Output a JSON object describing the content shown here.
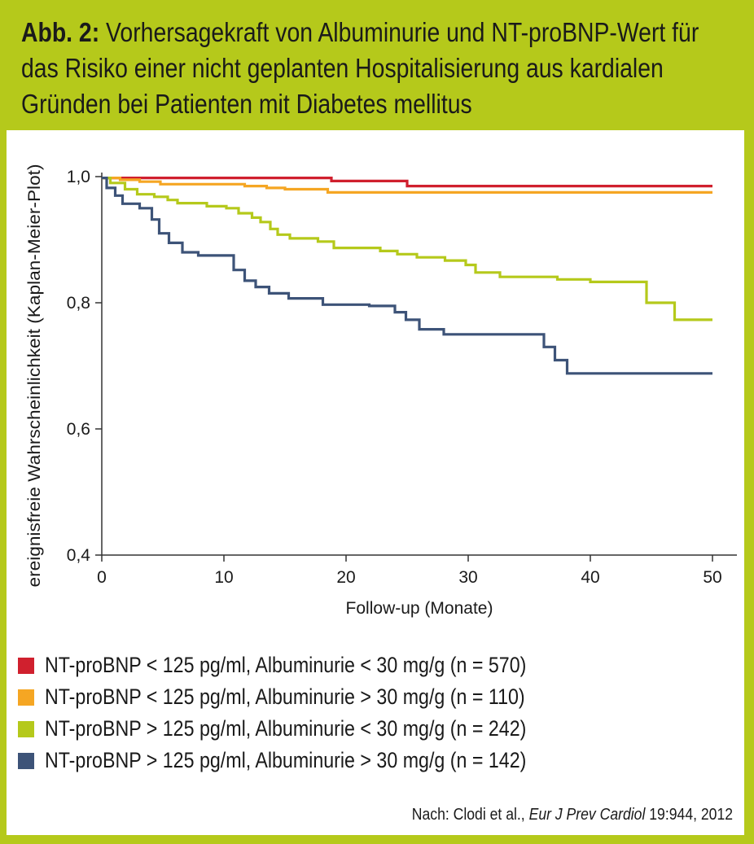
{
  "header": {
    "figure_label": "Abb. 2:",
    "title": "Vorhersagekraft von Albuminurie und NT-proBNP-Wert für das Risiko einer nicht geplanten Hospitalisierung aus kardialen Gründen bei Patienten mit Diabetes mellitus"
  },
  "source": {
    "prefix": "Nach: Clodi et al., ",
    "journal": "Eur J Prev Cardiol",
    "suffix": " 19:944, 2012"
  },
  "colors": {
    "background": "#b5c91b",
    "axis": "#333333"
  },
  "chart_data": {
    "type": "line",
    "subtype": "kaplan-meier step",
    "xlabel": "Follow-up (Monate)",
    "ylabel": "ereignisfreie Wahrscheinlichkeit (Kaplan-Meier-Plot)",
    "xlim": [
      0,
      52
    ],
    "ylim": [
      0.4,
      1.0
    ],
    "x_ticks": [
      0,
      10,
      20,
      30,
      40,
      50
    ],
    "x_tick_labels": [
      "0",
      "10",
      "20",
      "30",
      "40",
      "50"
    ],
    "y_ticks": [
      0.4,
      0.6,
      0.8,
      1.0
    ],
    "y_tick_labels": [
      "0,4",
      "0,6",
      "0,8",
      "1,0"
    ],
    "grid": false,
    "legend_position": "bottom",
    "series": [
      {
        "name": "NT-proBNP < 125 pg/ml, Albuminurie < 30 mg/g (n = 570)",
        "color": "#d0202e",
        "points": [
          [
            0,
            0.998
          ],
          [
            18.8,
            0.993
          ],
          [
            25,
            0.985
          ],
          [
            50,
            0.985
          ]
        ]
      },
      {
        "name": "NT-proBNP < 125 pg/ml, Albuminurie > 30 mg/g (n = 110)",
        "color": "#f5a623",
        "points": [
          [
            0,
            0.998
          ],
          [
            1.5,
            0.995
          ],
          [
            3.1,
            0.992
          ],
          [
            4.8,
            0.988
          ],
          [
            11.7,
            0.985
          ],
          [
            13.5,
            0.982
          ],
          [
            15,
            0.98
          ],
          [
            18.5,
            0.975
          ],
          [
            50,
            0.975
          ]
        ]
      },
      {
        "name": "NT-proBNP > 125 pg/ml, Albuminurie < 30 mg/g (n = 242)",
        "color": "#b5c91b",
        "points": [
          [
            0,
            0.998
          ],
          [
            0.7,
            0.99
          ],
          [
            1.9,
            0.98
          ],
          [
            2.9,
            0.972
          ],
          [
            4.3,
            0.968
          ],
          [
            5.4,
            0.963
          ],
          [
            6.2,
            0.958
          ],
          [
            8.6,
            0.953
          ],
          [
            10.2,
            0.95
          ],
          [
            11.2,
            0.942
          ],
          [
            12.3,
            0.935
          ],
          [
            13,
            0.928
          ],
          [
            13.8,
            0.917
          ],
          [
            14.4,
            0.908
          ],
          [
            15.4,
            0.902
          ],
          [
            17.7,
            0.897
          ],
          [
            19,
            0.887
          ],
          [
            22.8,
            0.882
          ],
          [
            24.2,
            0.877
          ],
          [
            25.8,
            0.872
          ],
          [
            28.1,
            0.867
          ],
          [
            29.8,
            0.86
          ],
          [
            30.6,
            0.848
          ],
          [
            32.6,
            0.841
          ],
          [
            37.3,
            0.837
          ],
          [
            40,
            0.833
          ],
          [
            44.6,
            0.8
          ],
          [
            46.9,
            0.773
          ],
          [
            50,
            0.773
          ]
        ]
      },
      {
        "name": "NT-proBNP > 125 pg/ml, Albuminurie > 30 mg/g (n = 142)",
        "color": "#3d5378",
        "points": [
          [
            0,
            0.998
          ],
          [
            0.4,
            0.982
          ],
          [
            1.1,
            0.97
          ],
          [
            1.7,
            0.957
          ],
          [
            3.1,
            0.95
          ],
          [
            4.1,
            0.932
          ],
          [
            4.7,
            0.91
          ],
          [
            5.5,
            0.895
          ],
          [
            6.6,
            0.88
          ],
          [
            7.9,
            0.875
          ],
          [
            10.8,
            0.852
          ],
          [
            11.7,
            0.835
          ],
          [
            12.6,
            0.825
          ],
          [
            13.7,
            0.815
          ],
          [
            15.3,
            0.807
          ],
          [
            18.1,
            0.797
          ],
          [
            21.9,
            0.795
          ],
          [
            24,
            0.785
          ],
          [
            24.9,
            0.773
          ],
          [
            26,
            0.758
          ],
          [
            28,
            0.75
          ],
          [
            36.2,
            0.73
          ],
          [
            37.1,
            0.709
          ],
          [
            38.1,
            0.688
          ],
          [
            50,
            0.688
          ]
        ]
      }
    ]
  }
}
